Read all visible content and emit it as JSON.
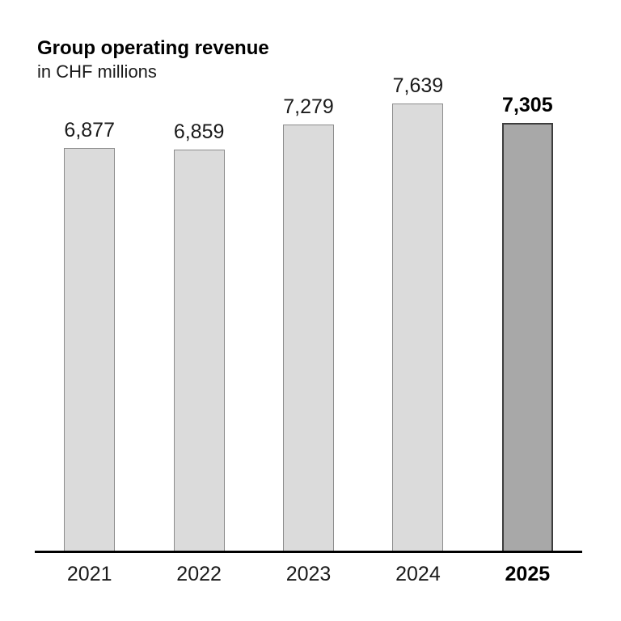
{
  "header": {
    "title": "Group operating revenue",
    "subtitle": "in CHF millions"
  },
  "chart_data": {
    "type": "bar",
    "title": "Group operating revenue",
    "subtitle": "in CHF millions",
    "categories": [
      "2021",
      "2022",
      "2023",
      "2024",
      "2025"
    ],
    "values": [
      6877,
      6859,
      7279,
      7639,
      7305
    ],
    "value_labels": [
      "6,877",
      "6,859",
      "7,279",
      "7,639",
      "7,305"
    ],
    "highlight_index": 4,
    "ylim": [
      0,
      7639
    ],
    "grid": "off",
    "legend": "none",
    "colors": {
      "bar_fill": "#dbdbdb",
      "bar_border": "#8c8c8c",
      "highlight_fill": "#a8a8a8",
      "highlight_border": "#3d3d3d",
      "axis_line": "#000000",
      "text": "#1a1a1a"
    }
  }
}
